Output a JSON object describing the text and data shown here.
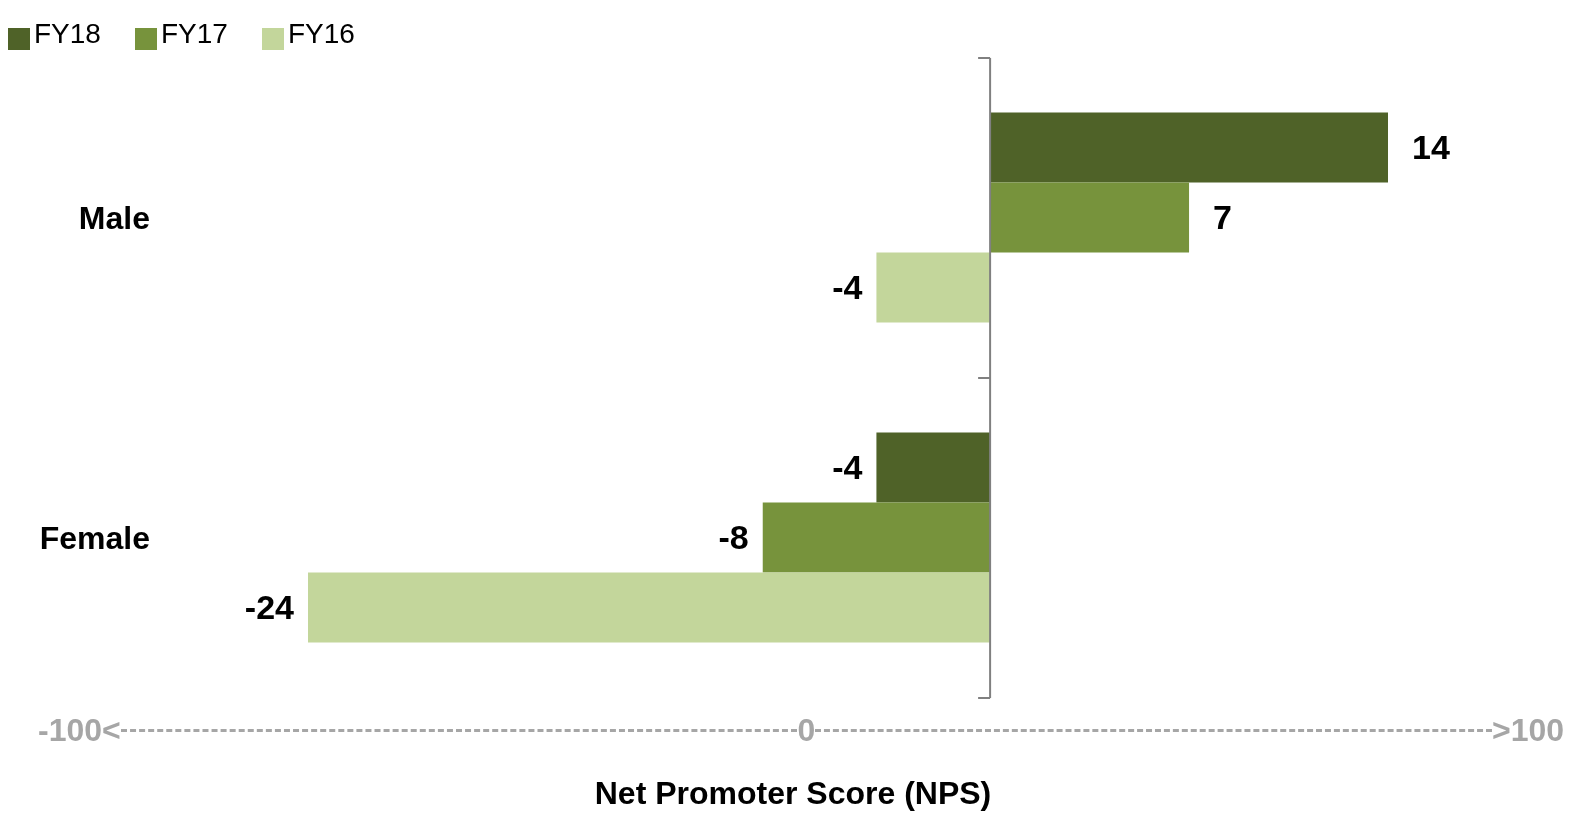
{
  "chart_data": {
    "type": "bar",
    "orientation": "horizontal",
    "categories": [
      "Male",
      "Female"
    ],
    "series": [
      {
        "name": "FY18",
        "color": "#4f6228",
        "values": [
          14,
          -4
        ]
      },
      {
        "name": "FY17",
        "color": "#77933c",
        "values": [
          7,
          -8
        ]
      },
      {
        "name": "FY16",
        "color": "#c3d69b",
        "values": [
          -4,
          -24
        ]
      }
    ],
    "tick_labels": "y",
    "data_labels": true,
    "legend": "top left",
    "xlabel": "Net Promoter Score (NPS)",
    "annotations": [
      "-100<",
      "0",
      ">100"
    ]
  }
}
